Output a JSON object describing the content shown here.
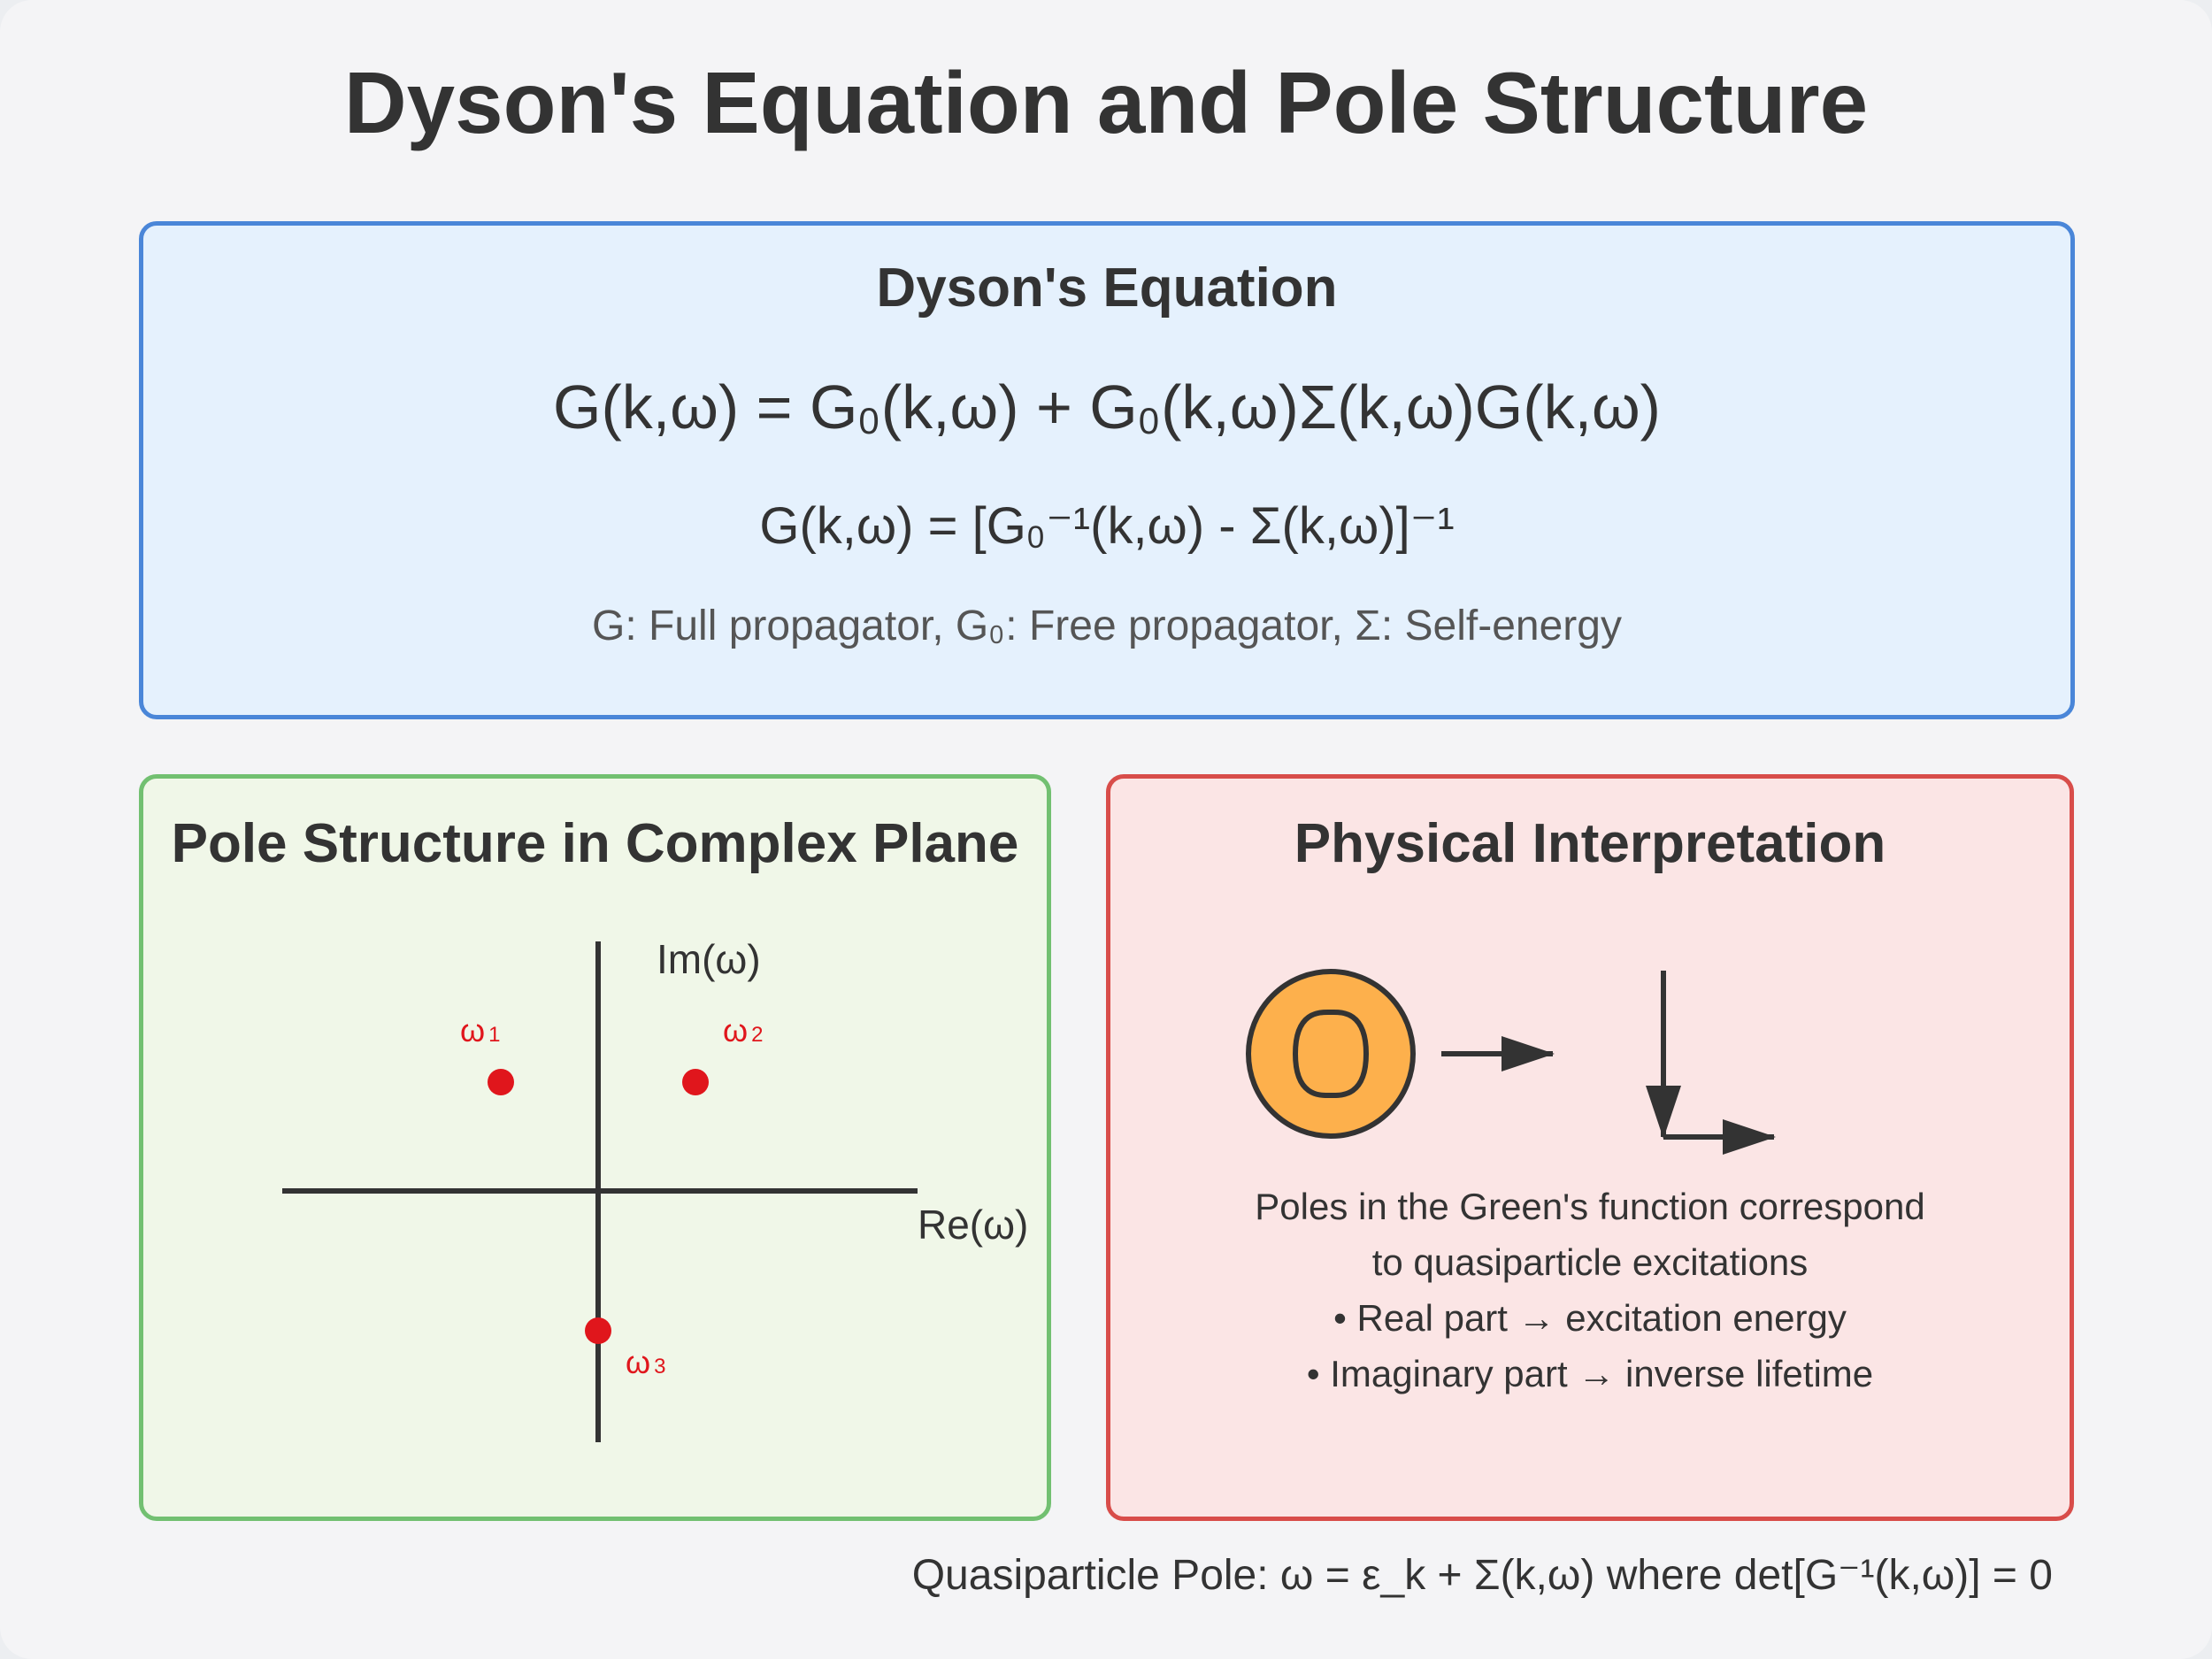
{
  "title": "Dyson's Equation and Pole Structure",
  "dyson_panel": {
    "title": "Dyson's Equation",
    "eq1": {
      "g": "G(k,ω) = G",
      "sub0": "0",
      "mid": "(k,ω) + G",
      "sub1": "0",
      "tail": "(k,ω)Σ(k,ω)G(k,ω)"
    },
    "eq2": {
      "a": "G(k,ω) = [G",
      "sub": "0",
      "sup1": "⁻¹",
      "b": "(k,ω) - Σ(k,ω)]",
      "sup2": "⁻¹"
    },
    "legend": {
      "a": "G: Full propagator, G",
      "sub": "0",
      "b": ": Free propagator, Σ: Self-energy"
    }
  },
  "pole_panel": {
    "title": "Pole Structure in Complex Plane",
    "im_axis_label": "Im(ω)",
    "re_axis_label": "Re(ω)",
    "poles": [
      {
        "symbol": "ω",
        "index": "1"
      },
      {
        "symbol": "ω",
        "index": "2"
      },
      {
        "symbol": "ω",
        "index": "3"
      }
    ],
    "pole_color": "#e0161c"
  },
  "interpretation_panel": {
    "title": "Physical Interpretation",
    "lines": [
      "Poles in the Green's function correspond",
      "to quasiparticle excitations",
      "• Real part → excitation energy",
      "• Imaginary part → inverse lifetime"
    ],
    "particle_color": "#fdb04c"
  },
  "bottom_note": "Quasiparticle Pole: ω = ε_k + Σ(k,ω) where det[G⁻¹(k,ω)] = 0"
}
